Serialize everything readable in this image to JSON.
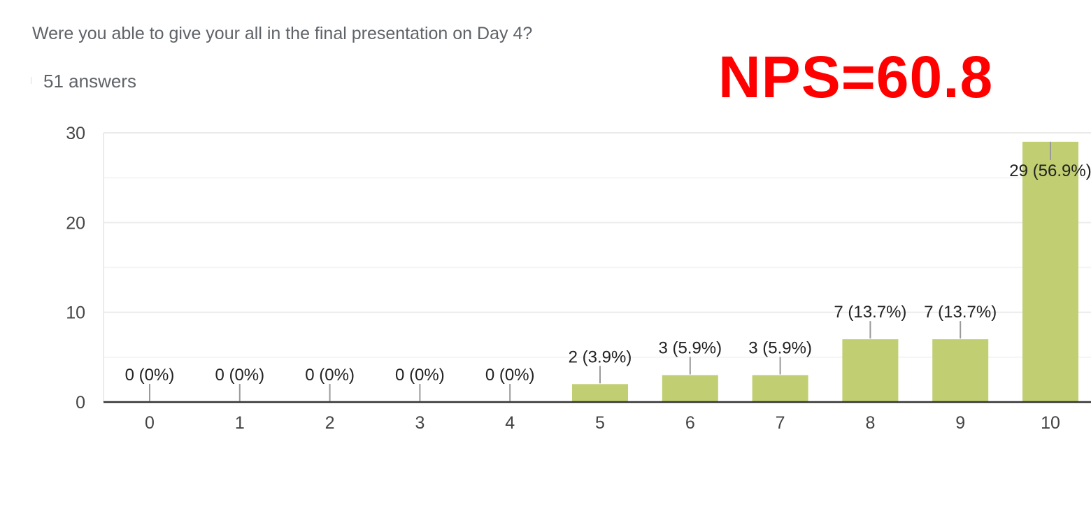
{
  "question": "Were you able to give your all in the final presentation on Day 4?",
  "answers_count": "51 answers",
  "nps_label": "NPS=60.8",
  "colors": {
    "bar": "#c1cf72",
    "axis": "#333333",
    "grid": "#ebebeb",
    "minor_grid": "#f5f5f5",
    "tick_text": "#444444",
    "label_text": "#222222",
    "leader": "#999999",
    "nps": "#ff0000"
  },
  "chart_data": {
    "type": "bar",
    "categories": [
      "0",
      "1",
      "2",
      "3",
      "4",
      "5",
      "6",
      "7",
      "8",
      "9",
      "10"
    ],
    "values": [
      0,
      0,
      0,
      0,
      0,
      2,
      3,
      3,
      7,
      7,
      29
    ],
    "data_labels": [
      "0 (0%)",
      "0 (0%)",
      "0 (0%)",
      "0 (0%)",
      "0 (0%)",
      "2 (3.9%)",
      "3 (5.9%)",
      "3 (5.9%)",
      "7 (13.7%)",
      "7 (13.7%)",
      "29 (56.9%)"
    ],
    "ylim": [
      0,
      30
    ],
    "yticks": [
      0,
      10,
      20,
      30
    ],
    "minor_grid_step": 5,
    "grid": true,
    "title": "",
    "xlabel": "",
    "ylabel": ""
  }
}
